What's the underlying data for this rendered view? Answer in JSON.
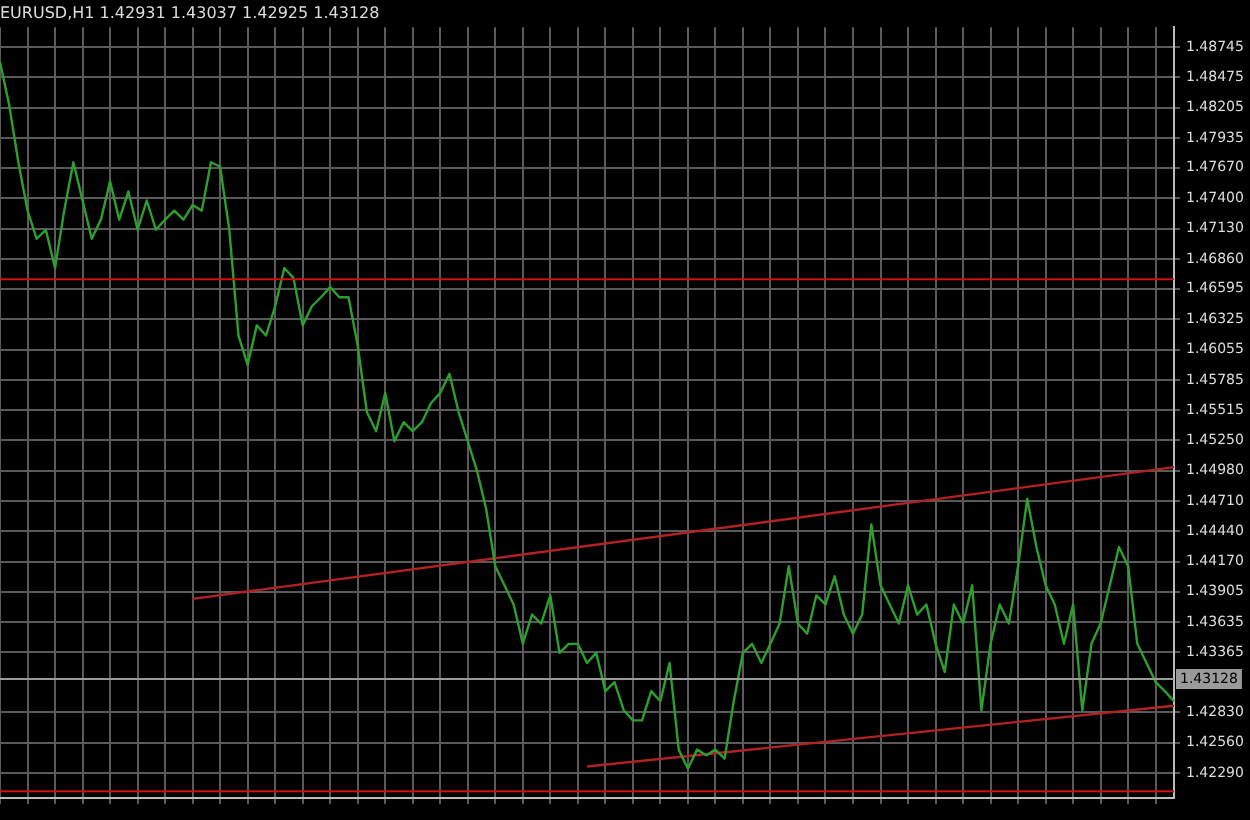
{
  "chart_data": {
    "type": "line",
    "title": "EURUSD,H1 1.42931 1.43037 1.42925 1.43128",
    "categories": [
      null,
      null,
      null,
      null,
      null,
      null,
      null,
      null,
      null,
      null,
      null,
      null,
      null,
      null,
      null,
      null,
      null,
      null,
      null,
      null,
      null,
      null,
      null,
      null,
      null,
      null,
      null,
      null,
      null,
      null,
      null,
      null,
      null,
      null,
      null,
      null,
      null,
      null,
      null,
      null,
      null,
      null,
      null,
      null,
      null,
      null,
      null,
      null,
      null,
      null,
      null,
      null,
      null,
      null,
      null,
      null,
      null,
      null,
      null,
      null,
      null,
      null,
      null,
      null,
      null,
      null,
      null,
      null,
      null,
      null,
      null,
      null,
      null,
      null,
      null,
      null,
      null,
      null,
      null,
      null,
      null,
      null,
      null,
      null,
      null,
      null,
      null,
      null,
      null,
      null,
      null,
      null,
      null,
      null,
      null,
      null,
      null,
      null,
      null,
      null,
      null,
      null,
      null,
      null,
      null,
      null,
      null,
      null,
      null,
      null,
      null,
      null,
      null,
      null,
      null,
      null,
      null,
      null,
      null,
      null,
      null,
      null,
      null,
      null,
      null,
      null,
      null,
      null,
      null
    ],
    "ylim": [
      1.4207,
      1.4892
    ],
    "yticks": [
      1.48745,
      1.48475,
      1.48205,
      1.47935,
      {
        "value": 1.4767,
        "label": "1.47670"
      },
      {
        "value": 1.474,
        "label": "1.47400"
      },
      {
        "value": 1.4713,
        "label": "1.47130"
      },
      {
        "value": 1.4686,
        "label": "1.46860"
      },
      1.46595,
      1.46325,
      1.46055,
      1.45785,
      1.45515,
      {
        "value": 1.4525,
        "label": "1.45250"
      },
      {
        "value": 1.4498,
        "label": "1.44980"
      },
      {
        "value": 1.4471,
        "label": "1.44710"
      },
      {
        "value": 1.4444,
        "label": "1.44440"
      },
      {
        "value": 1.4417,
        "label": "1.44170"
      },
      1.43905,
      1.43635,
      1.43365,
      {
        "value": 1.4283,
        "label": "1.42830"
      },
      {
        "value": 1.4256,
        "label": "1.42560"
      },
      {
        "value": 1.4229,
        "label": "1.42290"
      }
    ],
    "grid": true,
    "tick_labels": "y",
    "marker": "none",
    "line_style": "solid",
    "series": [
      {
        "color": "#2e9e2e",
        "values": [
          1.4861,
          1.4823,
          1.4772,
          1.4729,
          1.4704,
          1.4712,
          1.4678,
          1.4729,
          1.4772,
          1.4738,
          1.4704,
          1.4721,
          1.4755,
          1.4721,
          1.4746,
          1.4712,
          1.4738,
          1.4712,
          1.4721,
          1.4729,
          1.4721,
          1.4734,
          1.4729,
          1.4772,
          1.4768,
          1.4712,
          1.4618,
          1.4592,
          1.4627,
          1.4618,
          1.4644,
          1.4678,
          1.4669,
          1.4627,
          1.4644,
          1.4652,
          1.4661,
          1.4652,
          1.4652,
          1.4609,
          1.455,
          1.4533,
          1.4567,
          1.4524,
          1.4541,
          1.4533,
          1.4541,
          1.4558,
          1.4567,
          1.4584,
          1.455,
          1.4524,
          1.4498,
          1.4464,
          1.4413,
          1.4396,
          1.4379,
          1.4344,
          1.437,
          1.4362,
          1.4387,
          1.4336,
          1.4344,
          1.4344,
          1.4327,
          1.4336,
          1.4302,
          1.431,
          1.4285,
          1.4276,
          1.4276,
          1.4302,
          1.4293,
          1.4327,
          1.425,
          1.4233,
          1.425,
          1.4245,
          1.425,
          1.4242,
          1.4293,
          1.4336,
          1.4344,
          1.4327,
          1.4344,
          1.4362,
          1.4413,
          1.4362,
          1.4353,
          1.4387,
          1.4379,
          1.4404,
          1.437,
          1.4353,
          1.437,
          1.445,
          1.4396,
          1.4379,
          1.4362,
          1.4396,
          1.437,
          1.4379,
          1.4344,
          1.4319,
          1.4379,
          1.4362,
          1.4396,
          1.4285,
          1.4344,
          1.4379,
          1.4362,
          1.4413,
          1.4473,
          1.443,
          1.4396,
          1.4379,
          1.4344,
          1.4379,
          1.4285,
          1.4344,
          1.4362,
          1.4396,
          1.443,
          1.4413,
          1.4344,
          1.4327,
          1.431,
          1.4302,
          1.4293
        ]
      },
      {
        "type": "line",
        "color": "#b22222",
        "values": [
          null,
          null,
          null,
          null,
          null,
          null,
          null,
          null,
          null,
          null,
          null,
          null,
          null,
          null,
          null,
          null,
          null,
          null,
          null,
          null,
          null,
          1.4384,
          null,
          null,
          null,
          null,
          null,
          null,
          null,
          null,
          null,
          null,
          null,
          null,
          null,
          null,
          null,
          null,
          null,
          null,
          null,
          null,
          null,
          null,
          null,
          null,
          null,
          null,
          null,
          null,
          null,
          null,
          null,
          null,
          null,
          null,
          null,
          null,
          null,
          null,
          null,
          null,
          null,
          null,
          null,
          null,
          null,
          null,
          null,
          null,
          null,
          null,
          null,
          null,
          null,
          null,
          null,
          null,
          null,
          null,
          null,
          null,
          null,
          null,
          null,
          null,
          null,
          null,
          null,
          null,
          null,
          null,
          null,
          null,
          null,
          null,
          null,
          null,
          null,
          null,
          null,
          null,
          null,
          null,
          null,
          null,
          null,
          null,
          null,
          null,
          null,
          null,
          null,
          null,
          null,
          null,
          null,
          null,
          null,
          null,
          null,
          null,
          null,
          null,
          null,
          null,
          null,
          null,
          1.4501
        ]
      },
      {
        "type": "line",
        "color": "#b22222",
        "values": [
          null,
          null,
          null,
          null,
          null,
          null,
          null,
          null,
          null,
          null,
          null,
          null,
          null,
          null,
          null,
          null,
          null,
          null,
          null,
          null,
          null,
          null,
          null,
          null,
          null,
          null,
          null,
          null,
          null,
          null,
          null,
          null,
          null,
          null,
          null,
          null,
          null,
          null,
          null,
          null,
          null,
          null,
          null,
          null,
          null,
          null,
          null,
          null,
          null,
          null,
          null,
          null,
          null,
          null,
          null,
          null,
          null,
          null,
          null,
          null,
          null,
          null,
          null,
          null,
          1.4235,
          null,
          null,
          null,
          null,
          null,
          null,
          null,
          null,
          null,
          null,
          null,
          null,
          null,
          null,
          null,
          null,
          null,
          null,
          null,
          null,
          null,
          null,
          null,
          null,
          null,
          null,
          null,
          null,
          null,
          null,
          null,
          null,
          null,
          null,
          null,
          null,
          null,
          null,
          null,
          null,
          null,
          null,
          null,
          null,
          null,
          null,
          null,
          null,
          null,
          null,
          null,
          null,
          null,
          null,
          null,
          null,
          null,
          null,
          null,
          null,
          null,
          null,
          null,
          1.4289
        ]
      }
    ],
    "ref_lines": [
      {
        "axis": "y",
        "value": 1.4668,
        "color": "#d01010"
      },
      {
        "axis": "y",
        "value": 1.4213,
        "color": "#d01010"
      },
      {
        "axis": "y",
        "value": 1.43128,
        "color": "#9a9a9a",
        "label": "1.43128"
      }
    ]
  }
}
